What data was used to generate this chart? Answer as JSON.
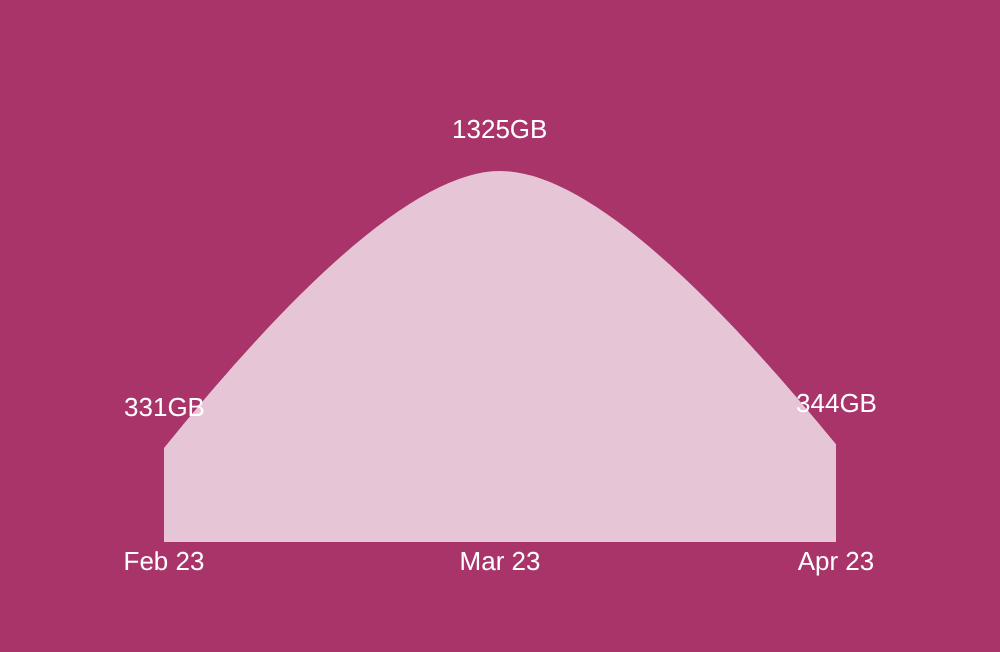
{
  "chart_data": {
    "type": "area",
    "categories": [
      "Feb 23",
      "Mar 23",
      "Apr 23"
    ],
    "values": [
      331,
      1325,
      344
    ],
    "value_labels": [
      "331GB",
      "1325GB",
      "344GB"
    ],
    "color": "#e6c6d6",
    "grid": false,
    "legend": false
  }
}
